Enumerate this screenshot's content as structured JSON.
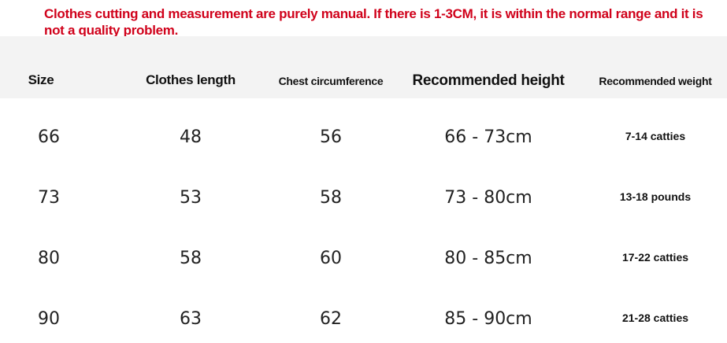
{
  "notice": "Clothes cutting and measurement are purely manual. If there is 1-3CM, it is within the normal range and it is not a quality problem.",
  "table": {
    "headers": [
      "Size",
      "Clothes length",
      "Chest circumference",
      "Recommended height",
      "Recommended weight"
    ],
    "rows": [
      [
        "66",
        "48",
        "56",
        "66 - 73cm",
        "7-14 catties"
      ],
      [
        "73",
        "53",
        "58",
        "73 - 80cm",
        "13-18 pounds"
      ],
      [
        "80",
        "58",
        "60",
        "80 - 85cm",
        "17-22 catties"
      ],
      [
        "90",
        "63",
        "62",
        "85 - 90cm",
        "21-28 catties"
      ]
    ]
  },
  "colors": {
    "notice": "#d0021b",
    "header_bg": "#f3f3f3"
  }
}
